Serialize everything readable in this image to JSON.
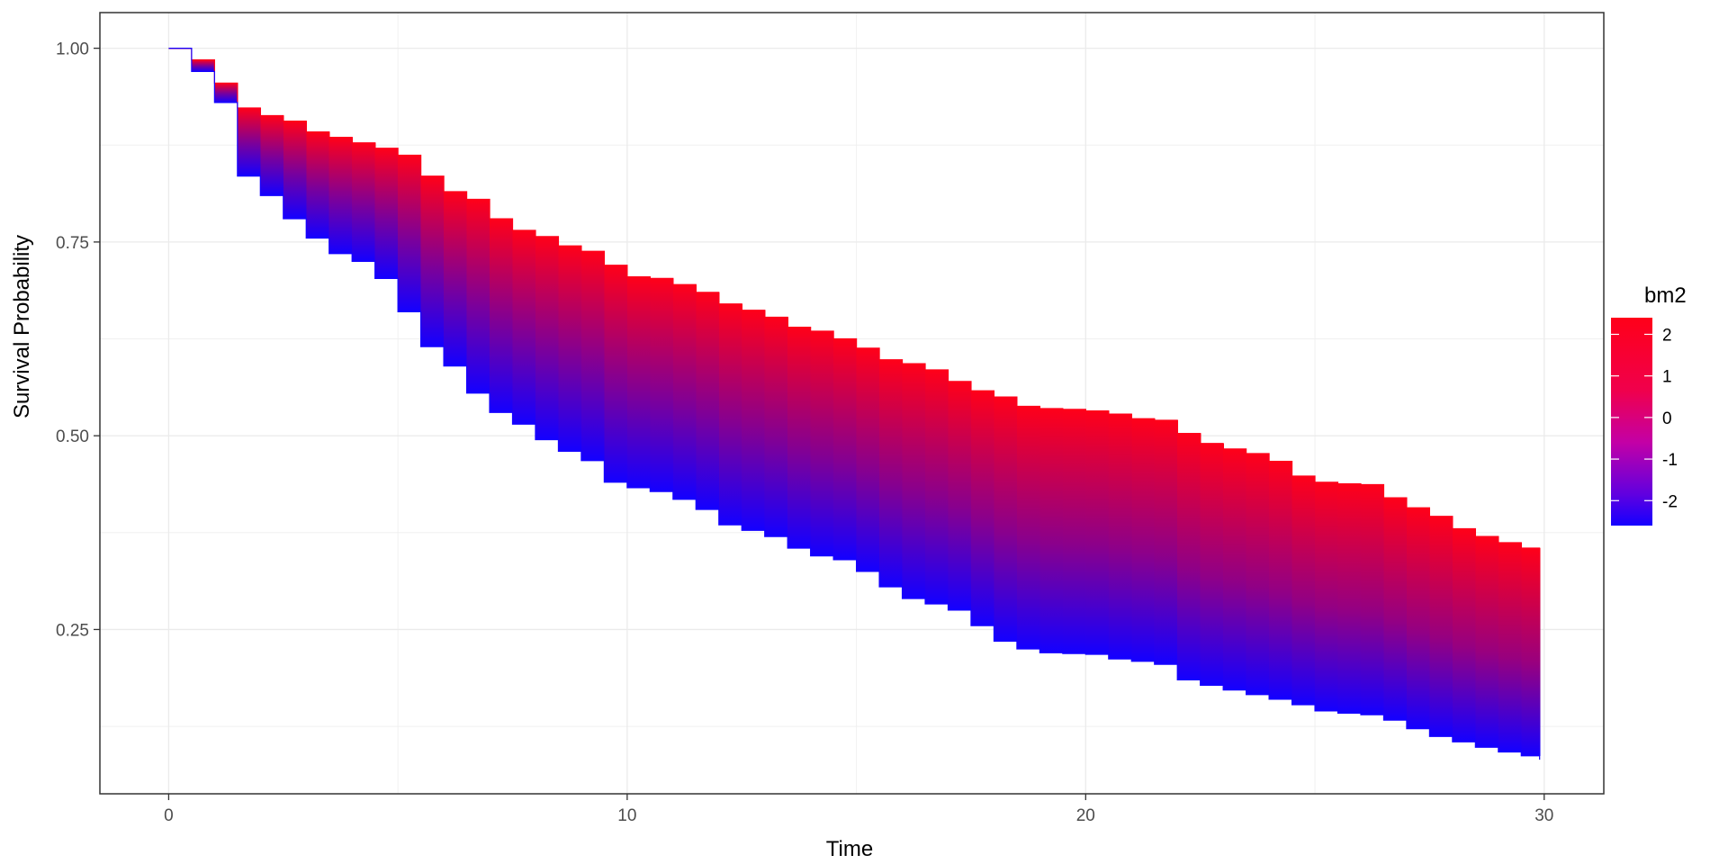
{
  "chart_data": {
    "type": "area",
    "title": "",
    "xlabel": "Time",
    "ylabel": "Survival Probability",
    "xlim": [
      -1.5,
      31.3
    ],
    "ylim": [
      0.038,
      1.046
    ],
    "x_ticks": [
      0,
      10,
      20,
      30
    ],
    "x_tick_labels": [
      "0",
      "10",
      "20",
      "30"
    ],
    "y_ticks": [
      0.25,
      0.5,
      0.75,
      1.0
    ],
    "y_tick_labels": [
      "0.25",
      "0.50",
      "0.75",
      "1.00"
    ],
    "grid": true,
    "legend": {
      "title": "bm2",
      "position": "right",
      "range": [
        -2.6,
        2.4
      ],
      "ticks": [
        2,
        1,
        0,
        -1,
        -2
      ],
      "tick_labels": [
        "2",
        "1",
        "0",
        "-1",
        "-2"
      ],
      "low_color": "#1400ff",
      "high_color": "#ff0019"
    },
    "series": [
      {
        "name": "2",
        "x": [
          0,
          0.5,
          1,
          1.5,
          2,
          2.5,
          3,
          3.5,
          4,
          4.5,
          5,
          5.5,
          6,
          6.5,
          7,
          7.5,
          8,
          8.5,
          9,
          9.5,
          10,
          10.5,
          11,
          11.5,
          12,
          12.5,
          13,
          13.5,
          14,
          14.5,
          15,
          15.5,
          16,
          16.5,
          17,
          17.5,
          18,
          18.5,
          19,
          19.5,
          20,
          20.5,
          21,
          21.5,
          22,
          22.5,
          23,
          23.5,
          24,
          24.5,
          25,
          25.5,
          26,
          26.5,
          27,
          27.5,
          28,
          28.5,
          29,
          29.5,
          29.9
        ],
        "y": [
          1.0,
          0.985,
          0.955,
          0.923,
          0.913,
          0.906,
          0.892,
          0.885,
          0.878,
          0.871,
          0.862,
          0.835,
          0.815,
          0.805,
          0.78,
          0.765,
          0.757,
          0.745,
          0.738,
          0.72,
          0.705,
          0.703,
          0.695,
          0.685,
          0.67,
          0.662,
          0.653,
          0.64,
          0.635,
          0.625,
          0.613,
          0.598,
          0.593,
          0.585,
          0.57,
          0.558,
          0.55,
          0.538,
          0.535,
          0.534,
          0.532,
          0.528,
          0.522,
          0.52,
          0.503,
          0.49,
          0.483,
          0.477,
          0.467,
          0.448,
          0.44,
          0.438,
          0.437,
          0.42,
          0.407,
          0.396,
          0.38,
          0.37,
          0.362,
          0.355,
          0.35
        ]
      },
      {
        "name": "-2",
        "x": [
          0,
          0.5,
          1,
          1.5,
          2,
          2.5,
          3,
          3.5,
          4,
          4.5,
          5,
          5.5,
          6,
          6.5,
          7,
          7.5,
          8,
          8.5,
          9,
          9.5,
          10,
          10.5,
          11,
          11.5,
          12,
          12.5,
          13,
          13.5,
          14,
          14.5,
          15,
          15.5,
          16,
          16.5,
          17,
          17.5,
          18,
          18.5,
          19,
          19.5,
          20,
          20.5,
          21,
          21.5,
          22,
          22.5,
          23,
          23.5,
          24,
          24.5,
          25,
          25.5,
          26,
          26.5,
          27,
          27.5,
          28,
          28.5,
          29,
          29.5,
          29.9
        ],
        "y": [
          1.0,
          0.97,
          0.93,
          0.835,
          0.81,
          0.78,
          0.755,
          0.735,
          0.725,
          0.703,
          0.66,
          0.615,
          0.59,
          0.555,
          0.53,
          0.515,
          0.495,
          0.48,
          0.468,
          0.44,
          0.433,
          0.428,
          0.418,
          0.405,
          0.385,
          0.378,
          0.37,
          0.355,
          0.345,
          0.34,
          0.325,
          0.305,
          0.29,
          0.283,
          0.275,
          0.255,
          0.235,
          0.225,
          0.22,
          0.219,
          0.218,
          0.212,
          0.209,
          0.205,
          0.185,
          0.178,
          0.172,
          0.166,
          0.16,
          0.153,
          0.145,
          0.142,
          0.14,
          0.133,
          0.122,
          0.112,
          0.105,
          0.098,
          0.092,
          0.087,
          0.082
        ]
      }
    ]
  }
}
